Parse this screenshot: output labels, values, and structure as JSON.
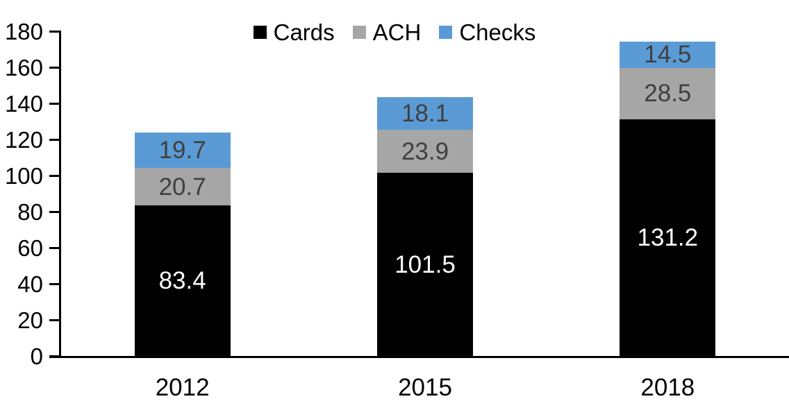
{
  "chart_data": {
    "type": "bar",
    "stacked": true,
    "title": "",
    "xlabel": "",
    "ylabel": "",
    "categories": [
      "2012",
      "2015",
      "2018"
    ],
    "series": [
      {
        "name": "Cards",
        "color": "#000000",
        "label_color": "#FFFFFF",
        "values": [
          83.4,
          101.5,
          131.2
        ]
      },
      {
        "name": "ACH",
        "color": "#A6A6A6",
        "label_color": "#3F3F3F",
        "values": [
          20.7,
          23.9,
          28.5
        ]
      },
      {
        "name": "Checks",
        "color": "#5B9BD5",
        "label_color": "#3F3F3F",
        "values": [
          19.7,
          18.1,
          14.5
        ]
      }
    ],
    "ylim": [
      0,
      180
    ],
    "yticks": [
      0,
      20,
      40,
      60,
      80,
      100,
      120,
      140,
      160,
      180
    ],
    "grid": false,
    "legend_position": "top-center",
    "axis_color": "#000000",
    "tick_label_color": "#000000"
  }
}
